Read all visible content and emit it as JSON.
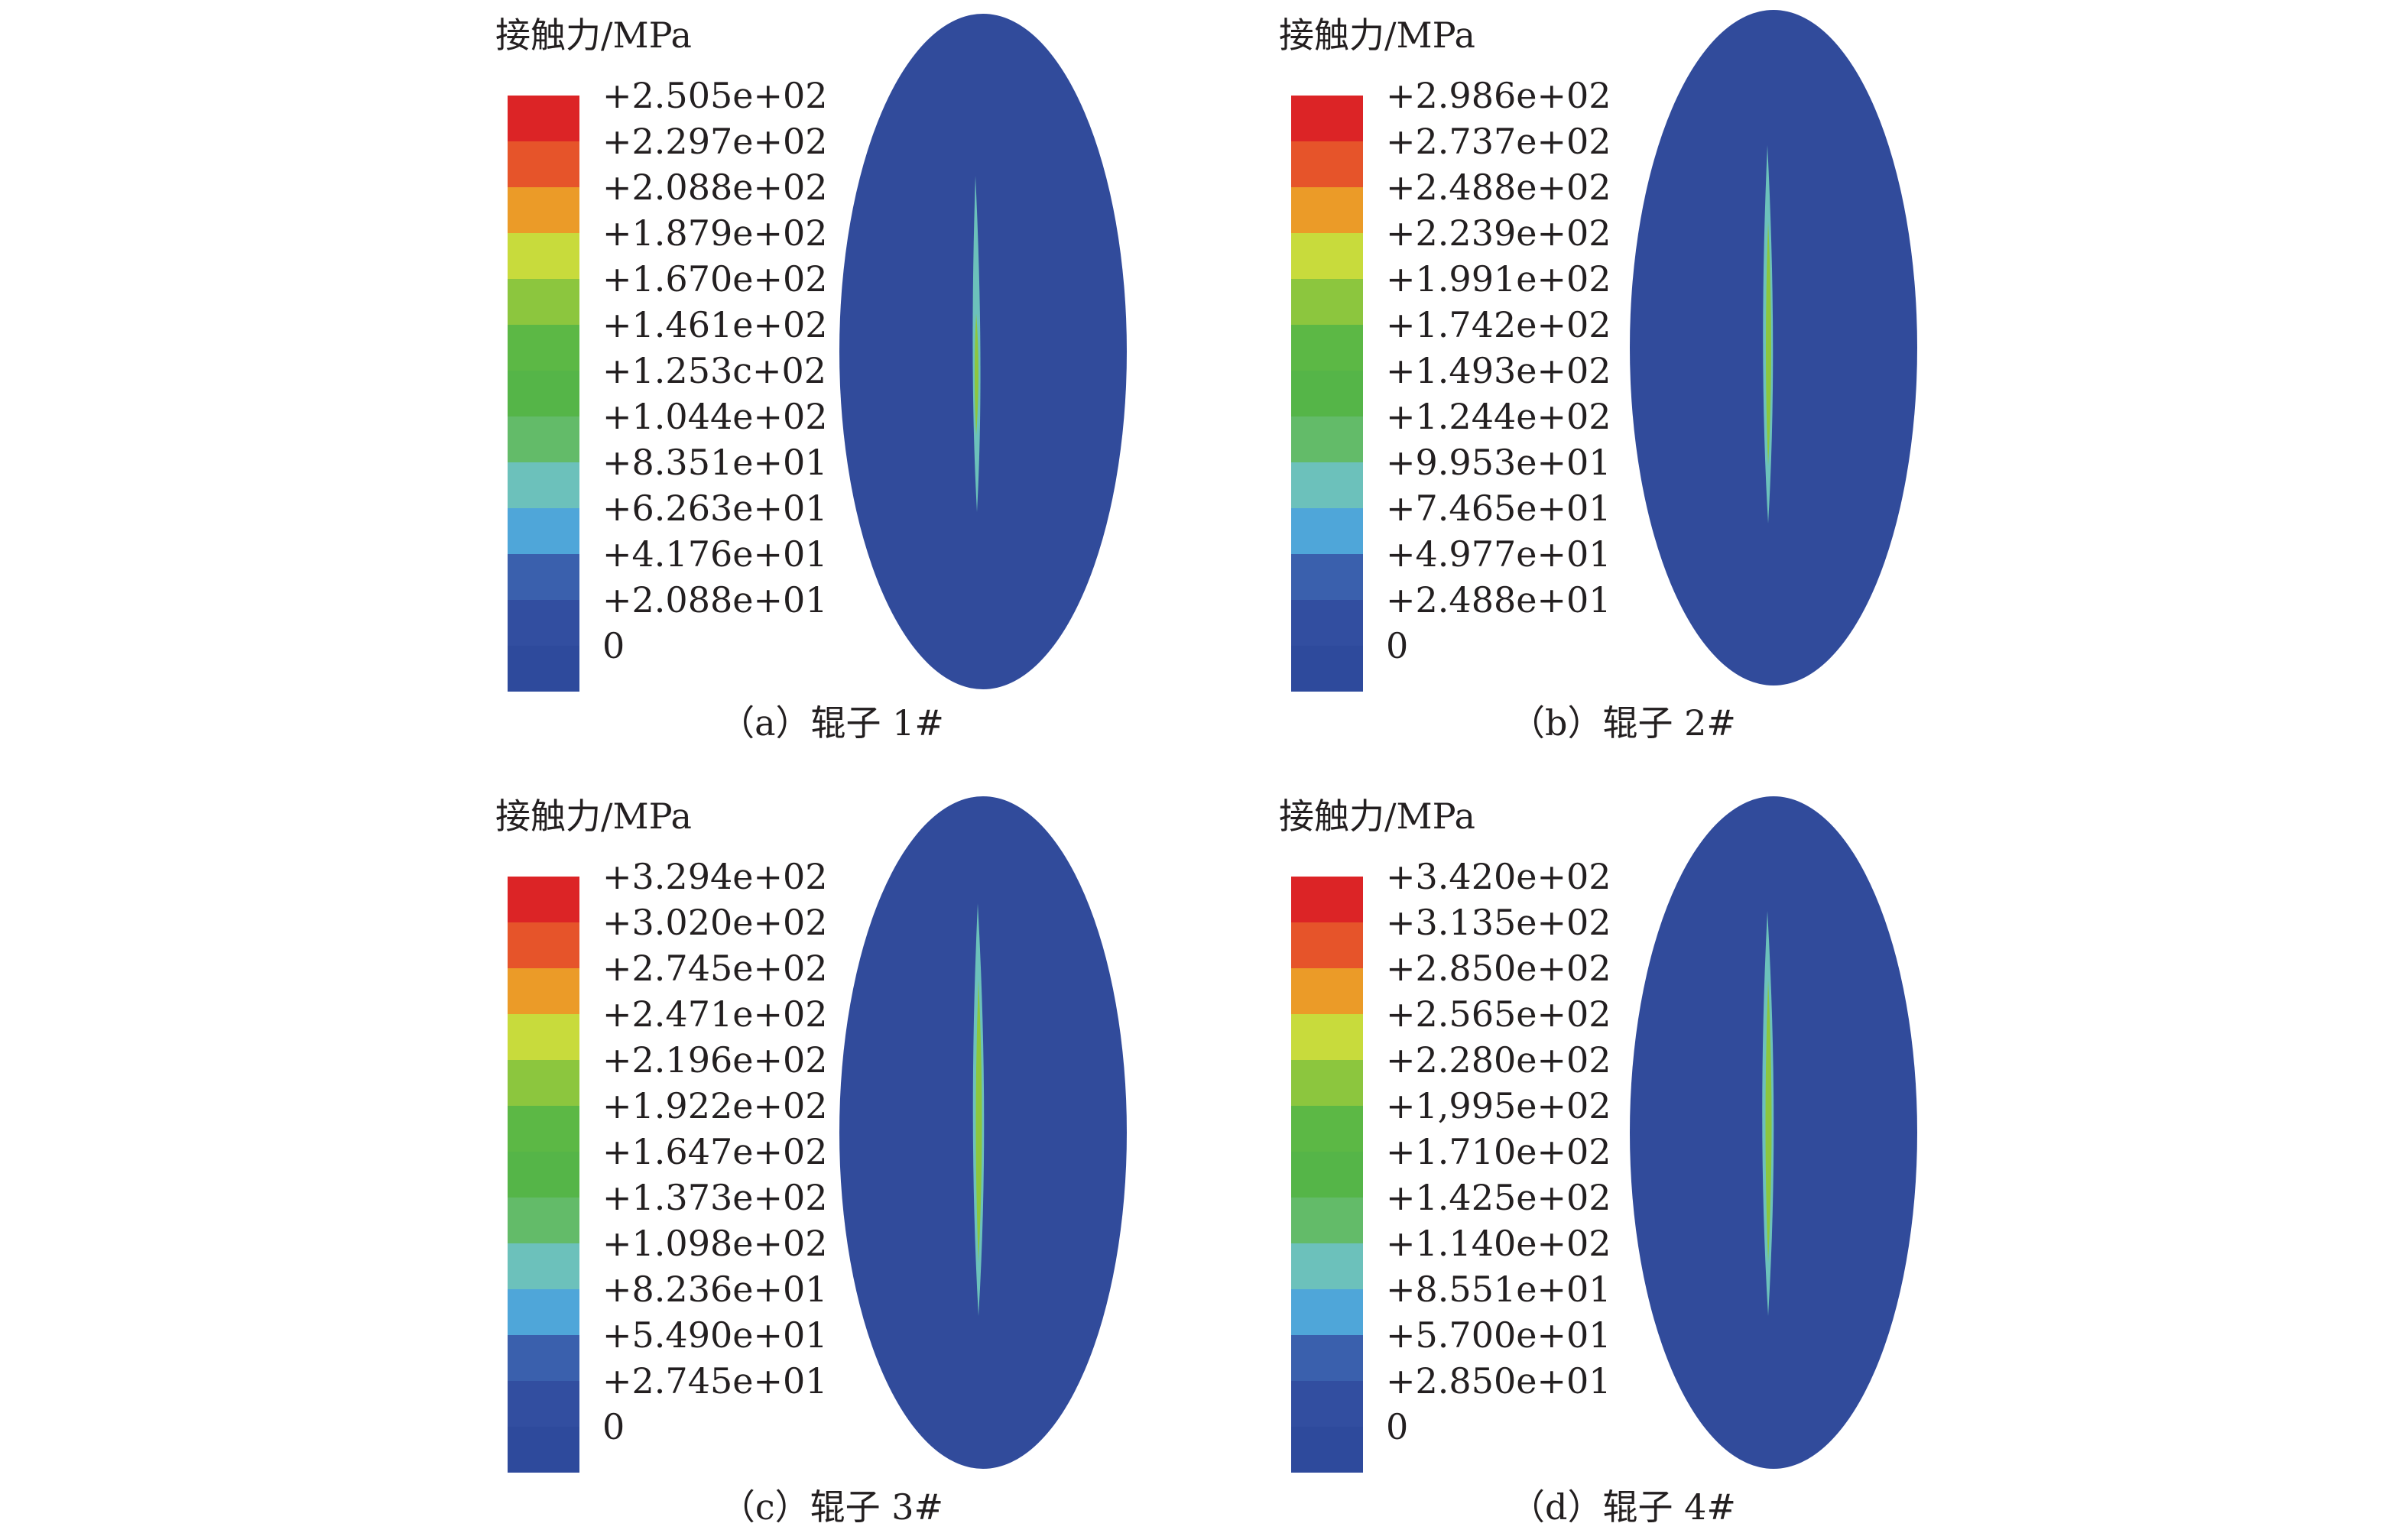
{
  "colors": {
    "scale": [
      "#dc2426",
      "#e6542a",
      "#eb9b28",
      "#c8db3c",
      "#8cc63e",
      "#5cb845",
      "#55b548",
      "#63bb69",
      "#6cc1bb",
      "#4fa6d9",
      "#3a60ad",
      "#324ea0",
      "#2e4a9c"
    ],
    "contact_background": "#314b9b",
    "contact_stripe": "#6cc1bb",
    "contact_stripe_core": "#8cc63e"
  },
  "panels": [
    {
      "unit_title": "接触力/MPa",
      "labels": [
        "+2.505e+02",
        "+2.297e+02",
        "+2.088e+02",
        "+1.879e+02",
        "+1.670e+02",
        "+1.461e+02",
        "+1.253c+02",
        "+1.044e+02",
        "+8.351e+01",
        "+6.263e+01",
        "+4.176e+01",
        "+2.088e+01",
        "0"
      ],
      "caption": "（a）辊子 1#"
    },
    {
      "unit_title": "接触力/MPa",
      "labels": [
        "+2.986e+02",
        "+2.737e+02",
        "+2.488e+02",
        "+2.239e+02",
        "+1.991e+02",
        "+1.742e+02",
        "+1.493e+02",
        "+1.244e+02",
        "+9.953e+01",
        "+7.465e+01",
        "+4.977e+01",
        "+2.488e+01",
        "0"
      ],
      "caption": "（b）辊子 2#"
    },
    {
      "unit_title": "接触力/MPa",
      "labels": [
        "+3.294e+02",
        "+3.020e+02",
        "+2.745e+02",
        "+2.471e+02",
        "+2.196e+02",
        "+1.922e+02",
        "+1.647e+02",
        "+1.373e+02",
        "+1.098e+02",
        "+8.236e+01",
        "+5.490e+01",
        "+2.745e+01",
        "0"
      ],
      "caption": "（c）辊子 3#"
    },
    {
      "unit_title": "接触力/MPa",
      "labels": [
        "+3.420e+02",
        "+3.135e+02",
        "+2.850e+02",
        "+2.565e+02",
        "+2.280e+02",
        "+1,995e+02",
        "+1.710e+02",
        "+1.425e+02",
        "+1.140e+02",
        "+8.551e+01",
        "+5.700e+01",
        "+2.850e+01",
        "0"
      ],
      "caption": "（d）辊子 4#"
    }
  ]
}
